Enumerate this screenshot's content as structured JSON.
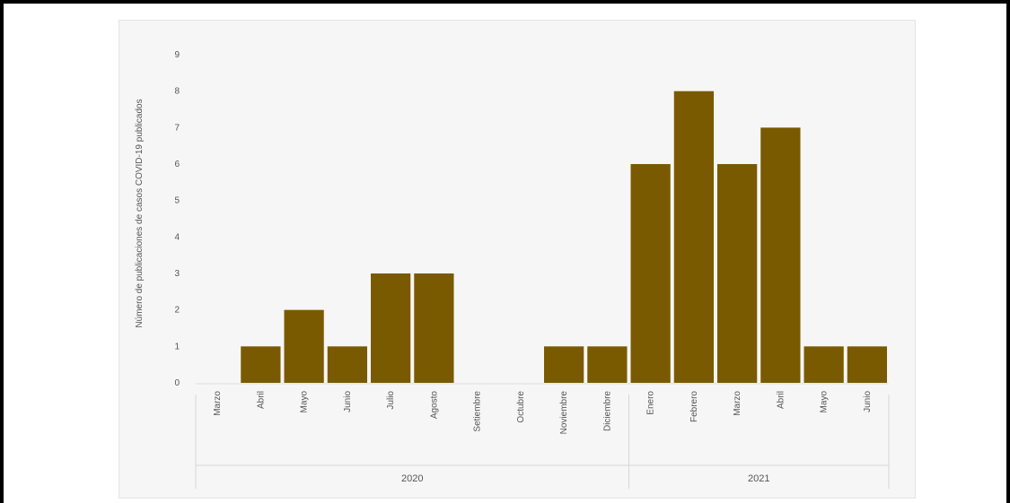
{
  "chart_data": {
    "type": "bar",
    "ylabel": "Número de publicaciones de casos COVID-19 publicados",
    "ylim": [
      0,
      9
    ],
    "yticks": [
      "0",
      "1",
      "2",
      "3",
      "4",
      "5",
      "6",
      "7",
      "8",
      "9"
    ],
    "categories": [
      "Marzo",
      "Abril",
      "Mayo",
      "Junio",
      "Julio",
      "Agosto",
      "Setiembre",
      "Octubre",
      "Noviembre",
      "Diciembre",
      "Enero",
      "Febrero",
      "Marzo",
      "Abril",
      "Mayo",
      "Junio"
    ],
    "values": [
      0,
      1,
      2,
      1,
      3,
      3,
      0,
      0,
      1,
      1,
      6,
      8,
      6,
      7,
      1,
      1
    ],
    "groups": [
      {
        "label": "2020",
        "count": 10
      },
      {
        "label": "2021",
        "count": 6
      }
    ],
    "bar_color": "#7a5a00",
    "grid": false,
    "legend": "none"
  }
}
